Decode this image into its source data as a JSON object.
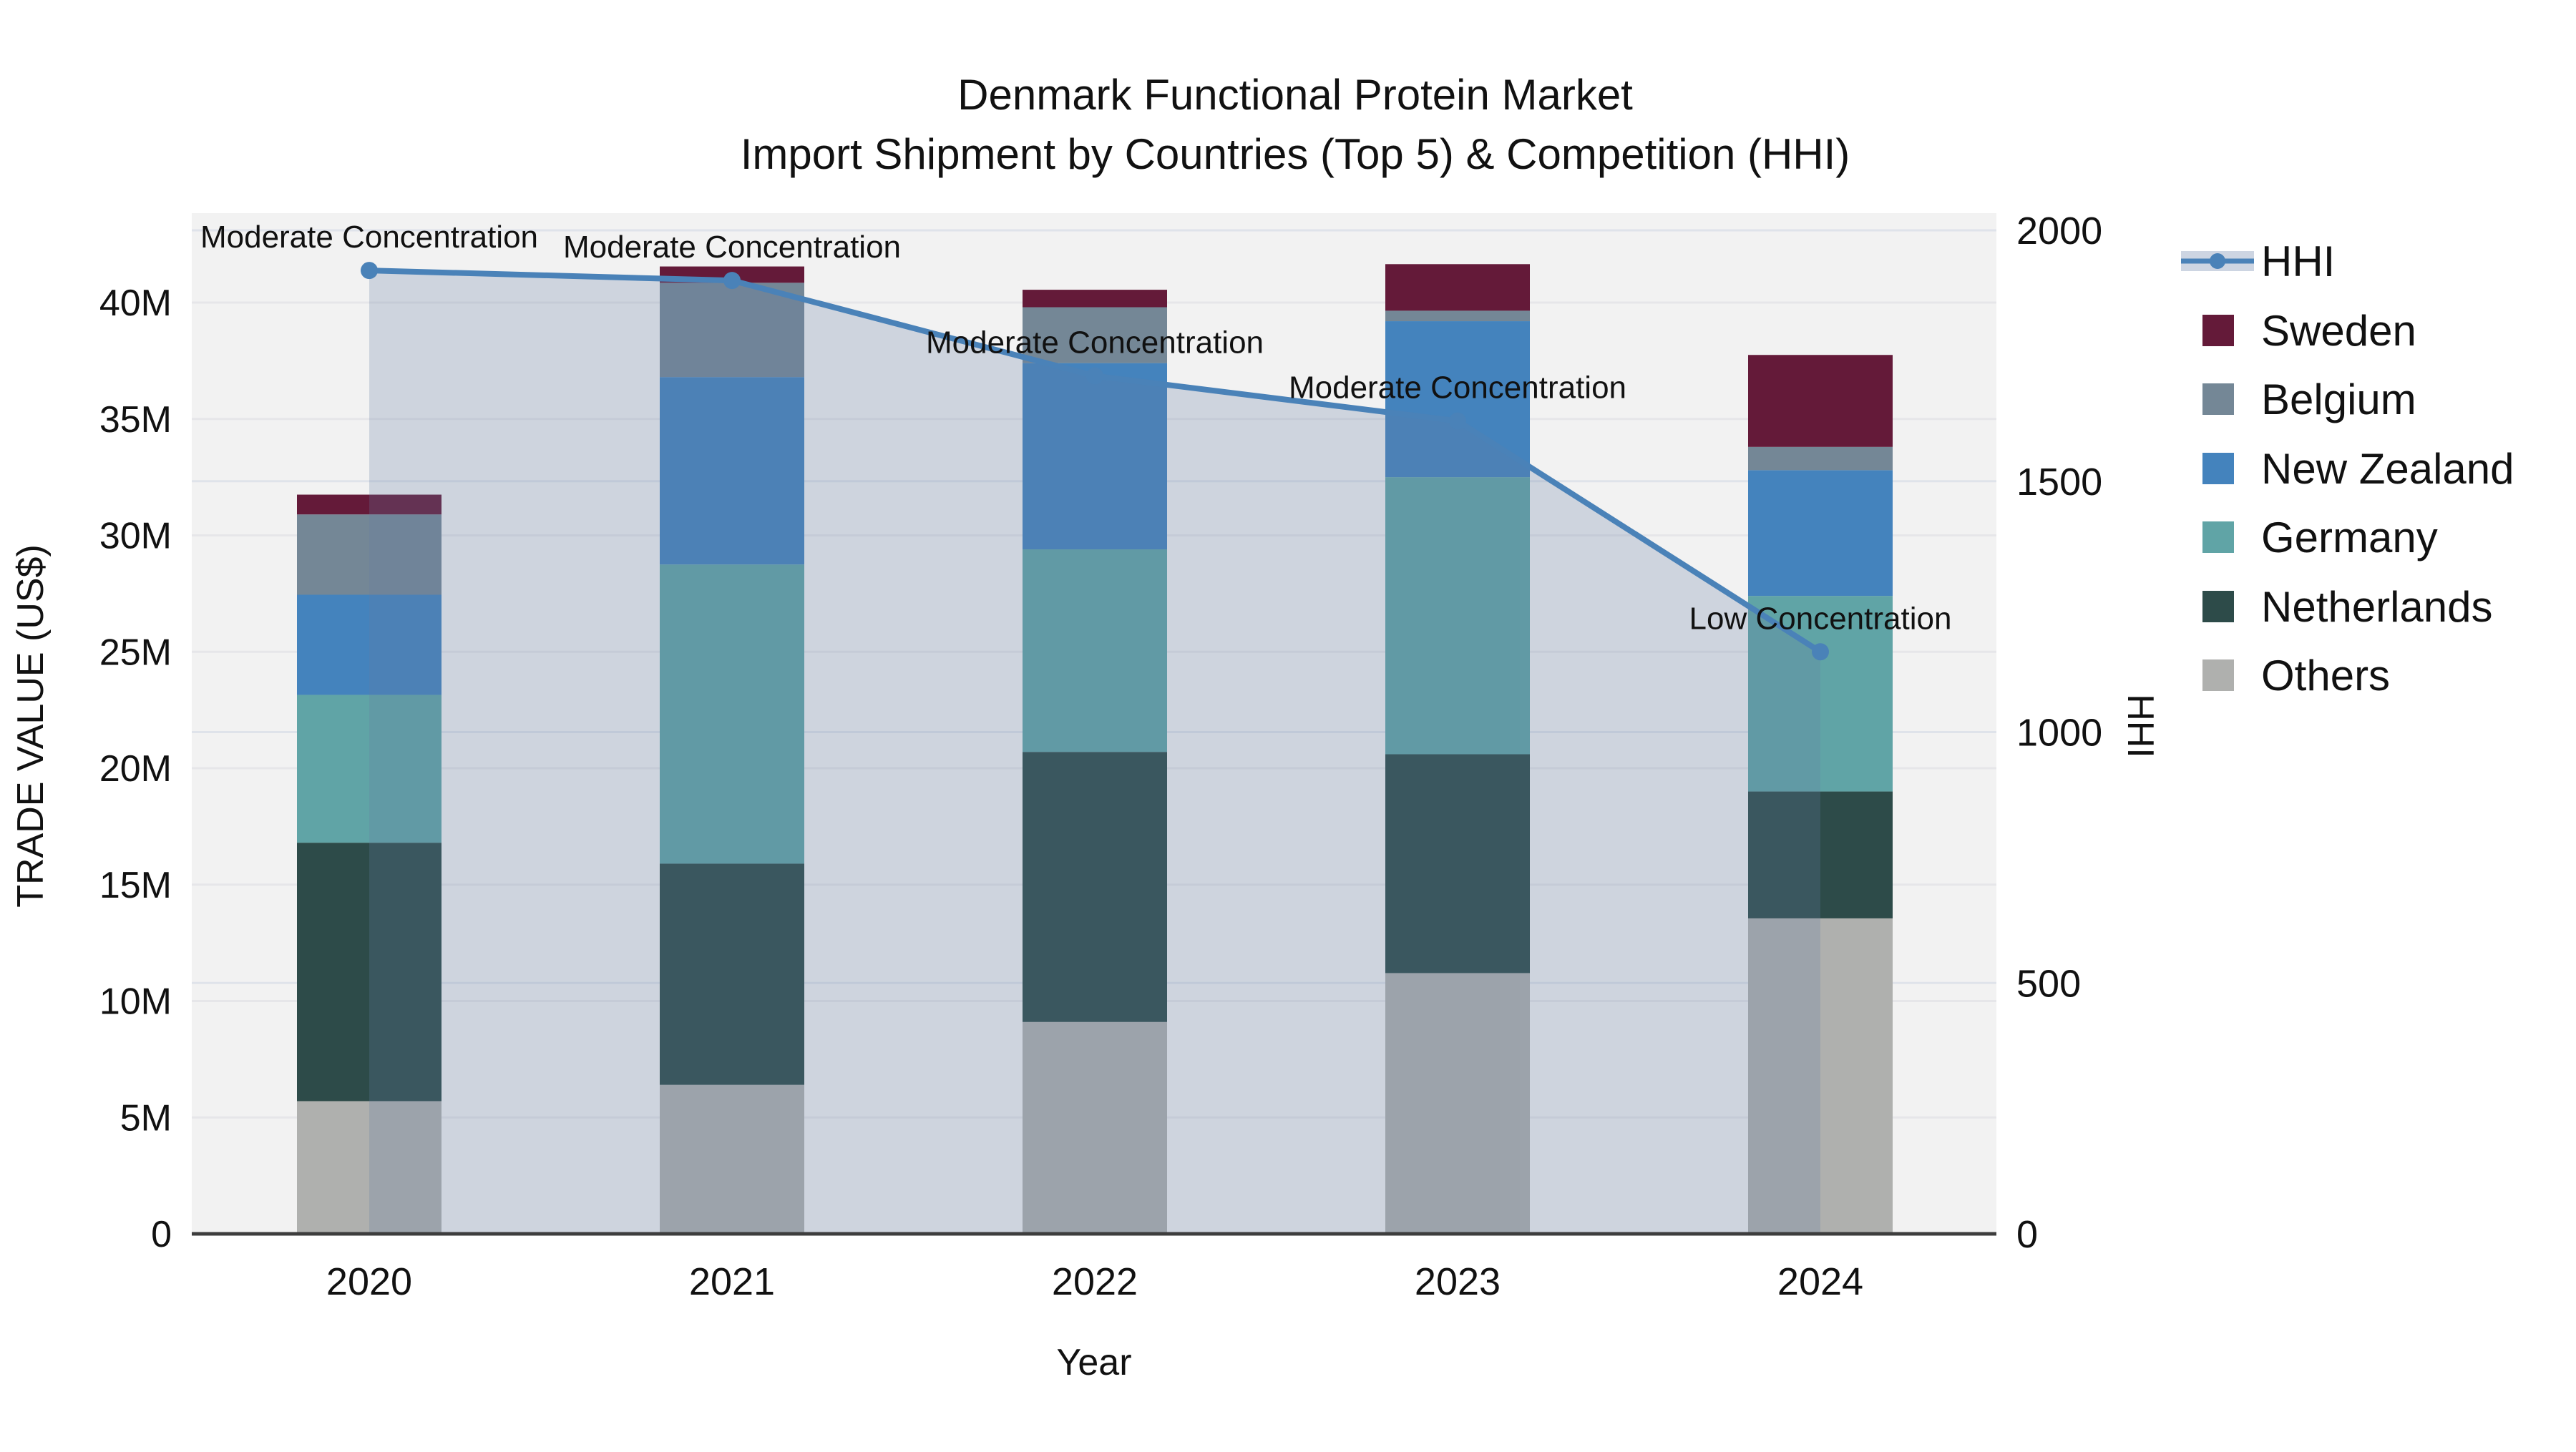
{
  "title": {
    "line1": "Denmark Functional Protein Market",
    "line2": "Import Shipment by Countries (Top 5) & Competition (HHI)"
  },
  "chart_data": {
    "type": "bar+line",
    "subtype": "stacked bars (left axis) with HHI line + area fill (right axis)",
    "categories": [
      "2020",
      "2021",
      "2022",
      "2023",
      "2024"
    ],
    "bar_unit": "US$ millions",
    "series": [
      {
        "name": "Sweden",
        "color": "#641a39",
        "values": [
          0.85,
          0.7,
          0.75,
          2.0,
          3.95
        ]
      },
      {
        "name": "Belgium",
        "color": "#748796",
        "values": [
          3.45,
          4.05,
          2.4,
          0.45,
          1.0
        ]
      },
      {
        "name": "New Zealand",
        "color": "#4483bd",
        "values": [
          4.3,
          8.05,
          8.0,
          6.7,
          5.4
        ]
      },
      {
        "name": "Germany",
        "color": "#60a4a6",
        "values": [
          6.35,
          12.85,
          8.7,
          11.9,
          8.4
        ]
      },
      {
        "name": "Netherlands",
        "color": "#2d4b49",
        "values": [
          11.1,
          9.5,
          11.6,
          9.4,
          5.45
        ]
      },
      {
        "name": "Others",
        "color": "#afb0ae",
        "values": [
          5.7,
          6.4,
          9.1,
          11.2,
          13.55
        ]
      }
    ],
    "stack_order_bottom_to_top": [
      "Others",
      "Netherlands",
      "Germany",
      "New Zealand",
      "Belgium",
      "Sweden"
    ],
    "line": {
      "name": "HHI",
      "color": "#4a82b8",
      "area_fill_color": "rgba(100,124,164,0.25)",
      "values": [
        1920,
        1900,
        1710,
        1620,
        1160
      ]
    },
    "annotations": [
      {
        "text": "Moderate Concentration",
        "category": "2020"
      },
      {
        "text": "Moderate Concentration",
        "category": "2021"
      },
      {
        "text": "Moderate Concentration",
        "category": "2022"
      },
      {
        "text": "Moderate Concentration",
        "category": "2023"
      },
      {
        "text": "Low Concentration",
        "category": "2024"
      }
    ],
    "xlabel": "Year",
    "y_left": {
      "label": "TRADE VALUE (US$)",
      "ticks": [
        "0",
        "5M",
        "10M",
        "15M",
        "20M",
        "25M",
        "30M",
        "35M",
        "40M"
      ],
      "tick_values": [
        0,
        5,
        10,
        15,
        20,
        25,
        30,
        35,
        40
      ],
      "max": 43.8
    },
    "y_right": {
      "label": "HHI",
      "ticks": [
        "0",
        "500",
        "1000",
        "1500",
        "2000"
      ],
      "tick_values": [
        0,
        500,
        1000,
        1500,
        2000
      ],
      "max": 2034
    },
    "grid": true,
    "legend_position": "right"
  },
  "legend": {
    "items": [
      "HHI",
      "Sweden",
      "Belgium",
      "New Zealand",
      "Germany",
      "Netherlands",
      "Others"
    ]
  },
  "colors": {
    "plot_background": "#f2f2f2",
    "page_background": "#ffffff",
    "gridline_left": "#e6e6e9",
    "gridline_right": "#dfe3ea",
    "axis_line": "#3d3d3d",
    "text": "#111111",
    "legend_area_swatch": "#cdd5e2"
  }
}
